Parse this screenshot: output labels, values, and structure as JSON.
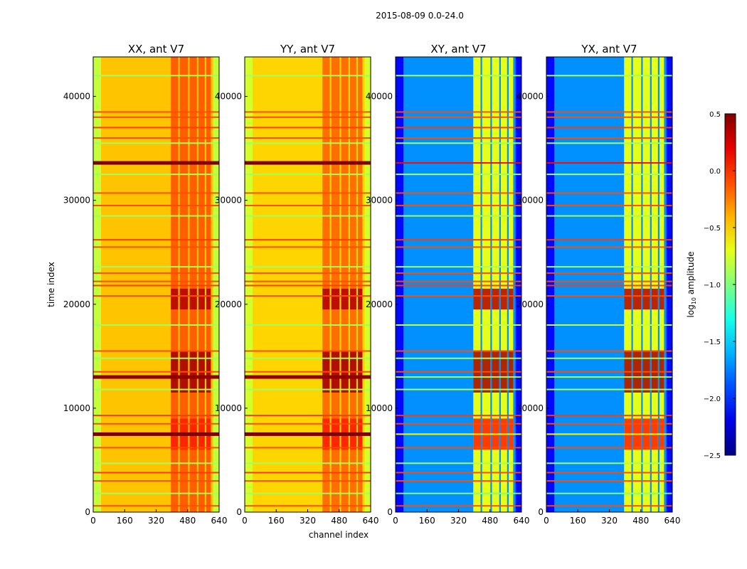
{
  "chart_data": {
    "type": "heatmap",
    "title": "2015-08-09 0.0-24.0",
    "xlabel": "channel index",
    "ylabel": "time index",
    "xlim": [
      0,
      640
    ],
    "ylim": [
      0,
      43800
    ],
    "xticks": [
      0,
      160,
      320,
      480,
      640
    ],
    "yticks": [
      0,
      10000,
      20000,
      30000,
      40000
    ],
    "colorbar": {
      "label": "log10 amplitude",
      "label_main": "log",
      "label_sub": "10",
      "label_rest": " amplitude",
      "range": [
        -2.5,
        0.5
      ],
      "ticks": [
        "0.5",
        "0.0",
        "−0.5",
        "−1.0",
        "−1.5",
        "−2.0",
        "−2.5"
      ],
      "tick_values": [
        0.5,
        0.0,
        -0.5,
        -1.0,
        -1.5,
        -2.0,
        -2.5
      ],
      "colormap": "jet"
    },
    "panels": [
      {
        "title": "XX, ant V7",
        "kind": "parallel",
        "base": -0.45,
        "edge": -0.8,
        "rfi": -0.15
      },
      {
        "title": "YY, ant V7",
        "kind": "parallel",
        "base": -0.5,
        "edge": -0.75,
        "rfi": -0.2
      },
      {
        "title": "XY, ant V7",
        "kind": "cross",
        "base": -1.7,
        "edge": -2.1,
        "rfi": -0.7
      },
      {
        "title": "YX, ant V7",
        "kind": "cross",
        "base": -1.7,
        "edge": -2.1,
        "rfi": -0.7
      }
    ],
    "rfi_channel_ranges": [
      [
        395,
        432
      ],
      [
        440,
        482
      ],
      [
        490,
        527
      ],
      [
        535,
        567
      ],
      [
        575,
        598
      ]
    ],
    "bursts": [
      [
        6000,
        9000,
        0.05
      ],
      [
        11500,
        15500,
        0.4
      ],
      [
        19500,
        21500,
        0.35
      ]
    ],
    "horizontal_features": [
      {
        "t": 600,
        "parallel": -0.1,
        "cross": -0.1
      },
      {
        "t": 1800,
        "parallel": -0.9,
        "cross": -1.0
      },
      {
        "t": 3000,
        "parallel": -0.1,
        "cross": -0.1
      },
      {
        "t": 3800,
        "parallel": -0.05,
        "cross": -0.1
      },
      {
        "t": 4700,
        "parallel": -0.9,
        "cross": -0.9
      },
      {
        "t": 6200,
        "parallel": -0.1,
        "cross": -0.1
      },
      {
        "t": 7500,
        "parallel": 0.5,
        "cross": -0.6
      },
      {
        "t": 8500,
        "parallel": -0.1,
        "cross": -0.1
      },
      {
        "t": 9300,
        "parallel": -0.05,
        "cross": -0.05
      },
      {
        "t": 11800,
        "parallel": -0.9,
        "cross": -0.9
      },
      {
        "t": 13000,
        "parallel": 0.45,
        "cross": -0.9
      },
      {
        "t": 13500,
        "parallel": -0.1,
        "cross": -0.1
      },
      {
        "t": 14800,
        "parallel": -0.9,
        "cross": -0.9
      },
      {
        "t": 15500,
        "parallel": -0.1,
        "cross": -0.1
      },
      {
        "t": 18000,
        "parallel": -0.9,
        "cross": -0.8
      },
      {
        "t": 20800,
        "parallel": -0.1,
        "cross": -0.1
      },
      {
        "t": 21800,
        "parallel": -0.05,
        "cross": -0.05
      },
      {
        "t": 22200,
        "parallel": -0.1,
        "cross": -0.1
      },
      {
        "t": 23000,
        "parallel": -0.1,
        "cross": -0.1
      },
      {
        "t": 23600,
        "parallel": -0.9,
        "cross": -0.9
      },
      {
        "t": 25500,
        "parallel": -0.1,
        "cross": -0.1
      },
      {
        "t": 26200,
        "parallel": -0.05,
        "cross": -0.05
      },
      {
        "t": 28500,
        "parallel": -0.9,
        "cross": -0.9
      },
      {
        "t": 29500,
        "parallel": -0.1,
        "cross": -0.1
      },
      {
        "t": 30700,
        "parallel": -0.1,
        "cross": -0.1
      },
      {
        "t": 32500,
        "parallel": -0.9,
        "cross": -0.9
      },
      {
        "t": 33600,
        "parallel": 0.5,
        "cross": 0.1
      },
      {
        "t": 35500,
        "parallel": -0.9,
        "cross": -0.9
      },
      {
        "t": 36000,
        "parallel": -0.1,
        "cross": -0.1
      },
      {
        "t": 37000,
        "parallel": -0.05,
        "cross": -0.05
      },
      {
        "t": 38000,
        "parallel": -0.1,
        "cross": -0.1
      },
      {
        "t": 38500,
        "parallel": -0.1,
        "cross": -0.1
      },
      {
        "t": 42000,
        "parallel": -0.9,
        "cross": -0.9
      }
    ]
  }
}
